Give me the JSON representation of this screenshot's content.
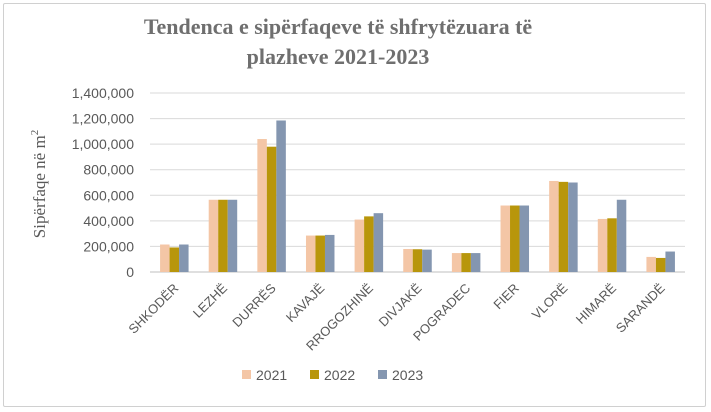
{
  "chart_data": {
    "type": "bar",
    "title_lines": [
      "Tendenca e sipërfaqeve të shfrytëzuara të",
      "plazheve 2021-2023"
    ],
    "ylabel": "Sipërfaqe në m",
    "ylabel_superscript": "2",
    "xlabel": "",
    "categories": [
      "SHKODËR",
      "LEZHË",
      "DURRËS",
      "KAVAJË",
      "RROGOZHINË",
      "DIVJAKË",
      "POGRADEC",
      "FIER",
      "VLORË",
      "HIMARË",
      "SARANDË"
    ],
    "series": [
      {
        "name": "2021",
        "color": "#f4c6a6",
        "values": [
          215000,
          565000,
          1040000,
          285000,
          410000,
          180000,
          148000,
          520000,
          712000,
          415000,
          118000
        ]
      },
      {
        "name": "2022",
        "color": "#b8960b",
        "values": [
          192000,
          565000,
          980000,
          285000,
          435000,
          178000,
          148000,
          520000,
          705000,
          420000,
          110000
        ]
      },
      {
        "name": "2023",
        "color": "#8496b0",
        "values": [
          215000,
          565000,
          1185000,
          290000,
          460000,
          175000,
          148000,
          520000,
          700000,
          565000,
          160000
        ]
      }
    ],
    "ylim": [
      0,
      1400000
    ],
    "yticks": [
      "0",
      "200,000",
      "400,000",
      "600,000",
      "800,000",
      "1,000,000",
      "1,200,000",
      "1,400,000"
    ],
    "grid": true,
    "legend_position": "bottom"
  }
}
